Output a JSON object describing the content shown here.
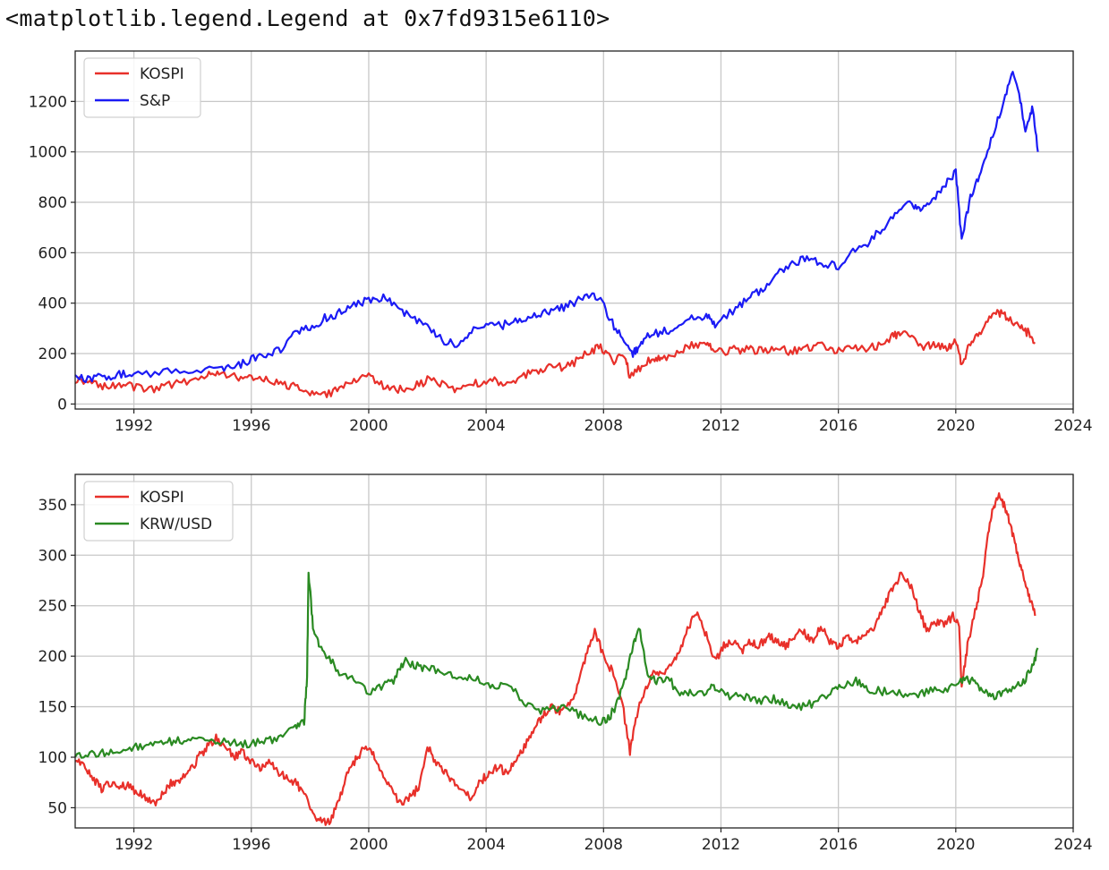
{
  "output_text": "<matplotlib.legend.Legend at 0x7fd9315e6110>",
  "chart_data": [
    {
      "type": "line",
      "title": "",
      "xlabel": "",
      "ylabel": "",
      "xlim": [
        1990,
        2024
      ],
      "ylim": [
        -20,
        1400
      ],
      "grid": true,
      "legend_position": "top-left",
      "xticks": [
        1992,
        1996,
        2000,
        2004,
        2008,
        2012,
        2016,
        2020,
        2024
      ],
      "xtick_labels": [
        "1992",
        "1996",
        "2000",
        "2004",
        "2008",
        "2012",
        "2016",
        "2020",
        "2024"
      ],
      "yticks": [
        0,
        200,
        400,
        600,
        800,
        1000,
        1200
      ],
      "ytick_labels": [
        "0",
        "200",
        "400",
        "600",
        "800",
        "1000",
        "1200"
      ],
      "series": [
        {
          "name": "KOSPI",
          "color": "#e8302a",
          "x": [
            1990.0,
            1990.5,
            1991.0,
            1991.5,
            1992.0,
            1992.6,
            1993.2,
            1993.8,
            1994.5,
            1994.9,
            1995.5,
            1996.0,
            1996.5,
            1997.0,
            1997.5,
            1998.0,
            1998.5,
            1999.0,
            1999.5,
            2000.0,
            2000.5,
            2001.0,
            2001.5,
            2002.0,
            2002.5,
            2003.0,
            2003.5,
            2004.0,
            2004.5,
            2005.0,
            2005.5,
            2006.0,
            2006.5,
            2007.0,
            2007.5,
            2007.9,
            2008.3,
            2008.7,
            2008.9,
            2009.3,
            2009.7,
            2010.0,
            2010.5,
            2011.0,
            2011.5,
            2011.8,
            2012.3,
            2012.8,
            2013.3,
            2013.8,
            2014.3,
            2014.8,
            2015.3,
            2015.8,
            2016.3,
            2016.8,
            2017.3,
            2017.8,
            2018.1,
            2018.5,
            2018.9,
            2019.3,
            2019.7,
            2020.0,
            2020.2,
            2020.5,
            2020.8,
            2021.2,
            2021.5,
            2021.8,
            2022.2,
            2022.5,
            2022.7
          ],
          "values": [
            100,
            85,
            72,
            75,
            70,
            58,
            75,
            90,
            110,
            125,
            105,
            105,
            95,
            85,
            65,
            40,
            32,
            60,
            95,
            105,
            75,
            60,
            65,
            95,
            80,
            60,
            75,
            95,
            85,
            100,
            120,
            140,
            145,
            165,
            210,
            225,
            170,
            200,
            105,
            150,
            180,
            185,
            205,
            235,
            245,
            200,
            215,
            215,
            215,
            220,
            210,
            215,
            235,
            215,
            220,
            215,
            230,
            265,
            285,
            275,
            225,
            240,
            225,
            250,
            160,
            240,
            275,
            355,
            360,
            345,
            300,
            280,
            240
          ]
        },
        {
          "name": "S&P",
          "color": "#1b1bf5",
          "x": [
            1990.0,
            1990.5,
            1991.0,
            1991.5,
            1992.0,
            1993.0,
            1994.0,
            1995.0,
            1995.5,
            1996.0,
            1996.5,
            1997.0,
            1997.5,
            1998.0,
            1998.5,
            1999.0,
            1999.5,
            2000.0,
            2000.5,
            2001.0,
            2001.5,
            2002.0,
            2002.5,
            2003.0,
            2003.5,
            2004.0,
            2004.5,
            2005.0,
            2005.5,
            2006.0,
            2006.5,
            2007.0,
            2007.5,
            2007.9,
            2008.3,
            2008.7,
            2009.0,
            2009.2,
            2009.5,
            2010.0,
            2010.5,
            2011.0,
            2011.5,
            2011.8,
            2012.5,
            2013.0,
            2013.5,
            2014.0,
            2014.5,
            2015.0,
            2015.5,
            2016.0,
            2016.5,
            2017.0,
            2017.5,
            2018.0,
            2018.5,
            2018.8,
            2019.2,
            2019.6,
            2020.0,
            2020.2,
            2020.5,
            2020.8,
            2021.2,
            2021.6,
            2021.9,
            2022.2,
            2022.4,
            2022.6,
            2022.8
          ],
          "values": [
            100,
            98,
            112,
            115,
            120,
            125,
            130,
            135,
            150,
            175,
            195,
            220,
            280,
            300,
            340,
            360,
            390,
            410,
            420,
            380,
            340,
            320,
            250,
            240,
            290,
            320,
            310,
            330,
            340,
            360,
            380,
            400,
            430,
            420,
            320,
            260,
            200,
            230,
            270,
            290,
            300,
            340,
            350,
            320,
            380,
            420,
            470,
            520,
            560,
            580,
            560,
            550,
            600,
            640,
            700,
            760,
            800,
            760,
            800,
            860,
            920,
            650,
            820,
            900,
            1050,
            1180,
            1320,
            1200,
            1080,
            1180,
            1000
          ]
        }
      ]
    },
    {
      "type": "line",
      "title": "",
      "xlabel": "",
      "ylabel": "",
      "xlim": [
        1990,
        2024
      ],
      "ylim": [
        30,
        380
      ],
      "grid": true,
      "legend_position": "top-left",
      "xticks": [
        1992,
        1996,
        2000,
        2004,
        2008,
        2012,
        2016,
        2020,
        2024
      ],
      "xtick_labels": [
        "1992",
        "1996",
        "2000",
        "2004",
        "2008",
        "2012",
        "2016",
        "2020",
        "2024"
      ],
      "yticks": [
        50,
        100,
        150,
        200,
        250,
        300,
        350
      ],
      "ytick_labels": [
        "50",
        "100",
        "150",
        "200",
        "250",
        "300",
        "350"
      ],
      "series": [
        {
          "name": "KOSPI",
          "color": "#e8302a",
          "x": [
            1990.0,
            1990.3,
            1990.6,
            1990.9,
            1991.2,
            1991.5,
            1991.8,
            1992.1,
            1992.4,
            1992.7,
            1993.0,
            1993.3,
            1993.6,
            1993.9,
            1994.2,
            1994.5,
            1994.8,
            1995.1,
            1995.4,
            1995.7,
            1996.0,
            1996.3,
            1996.6,
            1996.9,
            1997.2,
            1997.5,
            1997.8,
            1998.1,
            1998.4,
            1998.7,
            1999.0,
            1999.3,
            1999.6,
            1999.9,
            2000.2,
            2000.5,
            2000.8,
            2001.1,
            2001.4,
            2001.7,
            2002.0,
            2002.3,
            2002.6,
            2002.9,
            2003.2,
            2003.5,
            2003.8,
            2004.1,
            2004.4,
            2004.7,
            2005.0,
            2005.3,
            2005.6,
            2005.9,
            2006.2,
            2006.5,
            2006.8,
            2007.1,
            2007.4,
            2007.7,
            2008.0,
            2008.3,
            2008.6,
            2008.9,
            2009.1,
            2009.4,
            2009.7,
            2010.0,
            2010.3,
            2010.6,
            2010.9,
            2011.2,
            2011.5,
            2011.8,
            2012.1,
            2012.4,
            2012.7,
            2013.0,
            2013.3,
            2013.6,
            2013.9,
            2014.2,
            2014.5,
            2014.8,
            2015.1,
            2015.4,
            2015.7,
            2016.0,
            2016.3,
            2016.6,
            2016.9,
            2017.2,
            2017.5,
            2017.8,
            2018.1,
            2018.4,
            2018.7,
            2019.0,
            2019.3,
            2019.6,
            2019.9,
            2020.1,
            2020.2,
            2020.4,
            2020.7,
            2020.9,
            2021.1,
            2021.3,
            2021.5,
            2021.7,
            2021.9,
            2022.1,
            2022.3,
            2022.5,
            2022.7
          ],
          "values": [
            100,
            90,
            80,
            68,
            75,
            70,
            72,
            65,
            60,
            55,
            65,
            75,
            78,
            85,
            100,
            110,
            120,
            110,
            100,
            105,
            95,
            90,
            95,
            85,
            80,
            75,
            65,
            45,
            35,
            38,
            60,
            85,
            100,
            110,
            100,
            80,
            65,
            55,
            60,
            70,
            110,
            95,
            85,
            75,
            65,
            60,
            75,
            85,
            90,
            85,
            95,
            110,
            125,
            140,
            150,
            145,
            150,
            170,
            200,
            225,
            200,
            185,
            160,
            105,
            140,
            165,
            185,
            180,
            190,
            205,
            230,
            245,
            220,
            195,
            210,
            215,
            205,
            215,
            210,
            220,
            215,
            210,
            220,
            225,
            215,
            230,
            215,
            210,
            220,
            215,
            225,
            225,
            245,
            265,
            280,
            275,
            250,
            225,
            235,
            230,
            240,
            235,
            170,
            210,
            250,
            275,
            320,
            350,
            360,
            345,
            325,
            300,
            280,
            260,
            240
          ]
        },
        {
          "name": "KRW/USD",
          "color": "#2a8a22",
          "x": [
            1990.0,
            1990.5,
            1991.0,
            1991.5,
            1992.0,
            1992.5,
            1993.0,
            1993.5,
            1994.0,
            1994.5,
            1995.0,
            1995.5,
            1996.0,
            1996.5,
            1997.0,
            1997.5,
            1997.8,
            1997.9,
            1997.95,
            1998.1,
            1998.3,
            1998.6,
            1999.0,
            1999.5,
            2000.0,
            2000.5,
            2000.9,
            2001.2,
            2001.6,
            2002.0,
            2002.5,
            2003.0,
            2003.5,
            2004.0,
            2004.5,
            2005.0,
            2005.5,
            2006.0,
            2006.5,
            2007.0,
            2007.5,
            2007.9,
            2008.2,
            2008.5,
            2008.8,
            2009.0,
            2009.2,
            2009.5,
            2009.8,
            2010.2,
            2010.6,
            2011.0,
            2011.5,
            2011.8,
            2012.3,
            2012.8,
            2013.3,
            2013.8,
            2014.3,
            2014.8,
            2015.3,
            2015.8,
            2016.2,
            2016.6,
            2017.0,
            2017.5,
            2018.0,
            2018.5,
            2019.0,
            2019.5,
            2020.0,
            2020.3,
            2020.6,
            2020.9,
            2021.2,
            2021.6,
            2022.0,
            2022.3,
            2022.6,
            2022.8
          ],
          "values": [
            100,
            104,
            105,
            107,
            110,
            113,
            115,
            117,
            118,
            118,
            116,
            113,
            114,
            115,
            122,
            130,
            135,
            180,
            285,
            230,
            210,
            200,
            185,
            175,
            165,
            170,
            178,
            195,
            190,
            188,
            185,
            178,
            180,
            172,
            170,
            165,
            150,
            145,
            150,
            145,
            138,
            135,
            140,
            155,
            185,
            210,
            230,
            185,
            175,
            180,
            160,
            165,
            165,
            170,
            160,
            160,
            155,
            158,
            152,
            150,
            155,
            165,
            170,
            175,
            168,
            165,
            165,
            160,
            165,
            168,
            170,
            178,
            175,
            168,
            160,
            165,
            170,
            175,
            188,
            208
          ]
        }
      ]
    }
  ]
}
